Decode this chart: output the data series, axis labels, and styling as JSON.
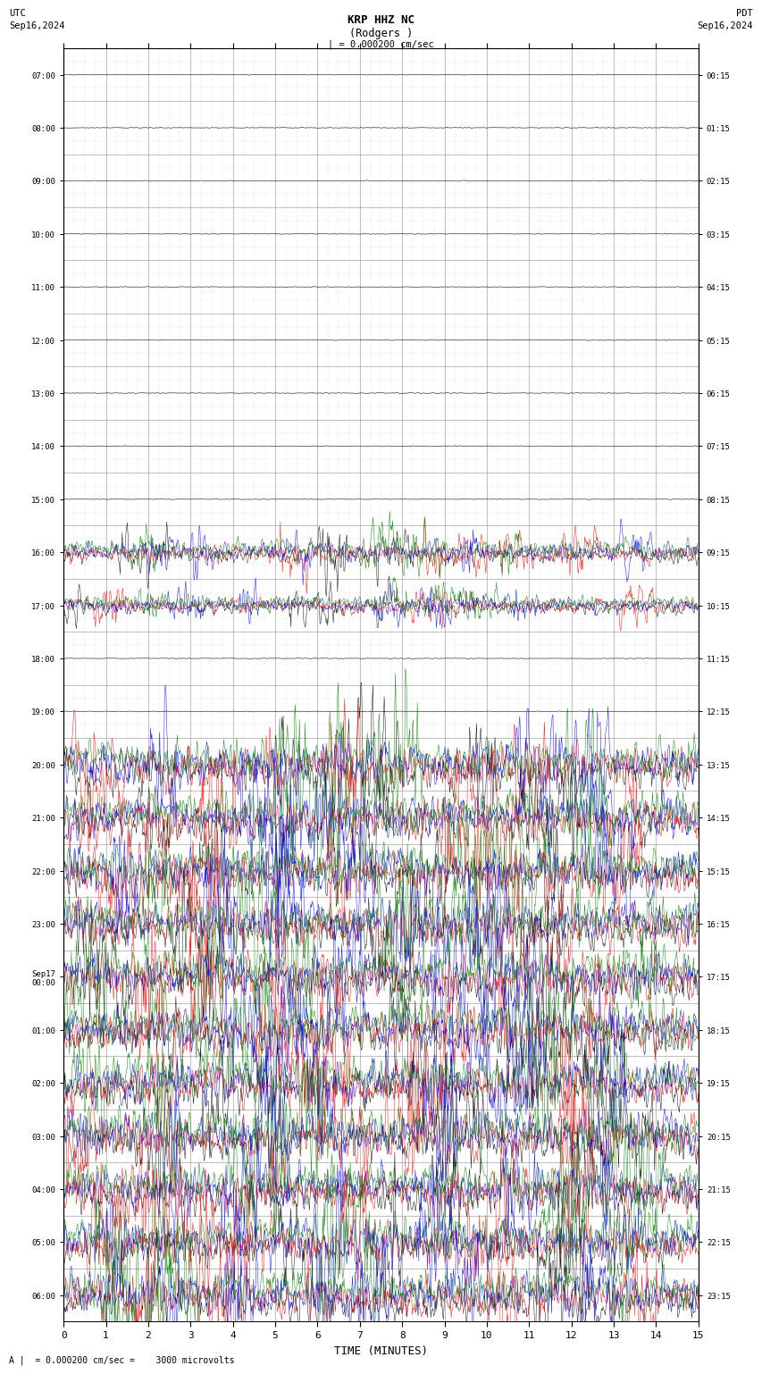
{
  "title_line1": "KRP HHZ NC",
  "title_line2": "(Rodgers )",
  "scale_label": "| = 0.000200 cm/sec",
  "bottom_label": "A |  = 0.000200 cm/sec =    3000 microvolts",
  "utc_label": "UTC",
  "utc_date": "Sep16,2024",
  "pdt_label": "PDT",
  "pdt_date": "Sep16,2024",
  "xlabel": "TIME (MINUTES)",
  "left_times_utc": [
    "07:00",
    "08:00",
    "09:00",
    "10:00",
    "11:00",
    "12:00",
    "13:00",
    "14:00",
    "15:00",
    "16:00",
    "17:00",
    "18:00",
    "19:00",
    "20:00",
    "21:00",
    "22:00",
    "23:00",
    "Sep17\n00:00",
    "01:00",
    "02:00",
    "03:00",
    "04:00",
    "05:00",
    "06:00"
  ],
  "right_times_pdt": [
    "00:15",
    "01:15",
    "02:15",
    "03:15",
    "04:15",
    "05:15",
    "06:15",
    "07:15",
    "08:15",
    "09:15",
    "10:15",
    "11:15",
    "12:15",
    "13:15",
    "14:15",
    "15:15",
    "16:15",
    "17:15",
    "18:15",
    "19:15",
    "20:15",
    "21:15",
    "22:15",
    "23:15"
  ],
  "n_rows": 24,
  "n_minutes": 15,
  "bg_color": "#ffffff",
  "grid_color": "#aaaaaa",
  "trace_colors": [
    "#000000",
    "#ff0000",
    "#0000ff",
    "#008000"
  ]
}
